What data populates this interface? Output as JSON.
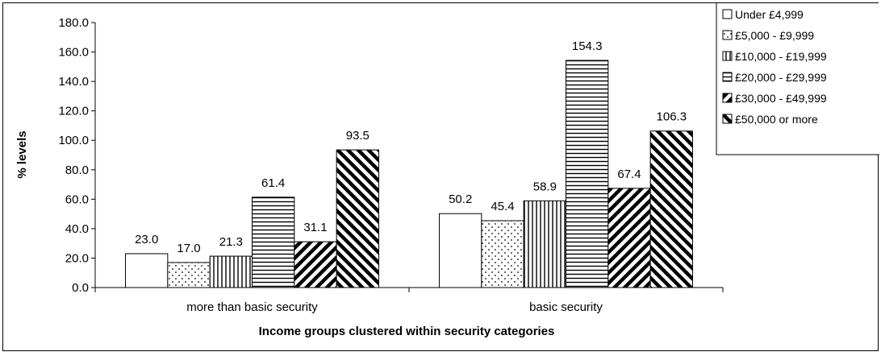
{
  "chart_data": {
    "type": "bar",
    "title": "",
    "xlabel": "Income groups clustered within security categories",
    "ylabel": "% levels",
    "ylim": [
      0,
      180
    ],
    "ytick_step": 20,
    "ytick_labels": [
      "0.0",
      "20.0",
      "40.0",
      "60.0",
      "80.0",
      "100.0",
      "120.0",
      "140.0",
      "160.0",
      "180.0"
    ],
    "grid": false,
    "legend_position": "top-right",
    "categories": [
      "more than basic security",
      "basic security"
    ],
    "series": [
      {
        "name": "Under £4,999",
        "values": [
          23.0,
          50.2
        ],
        "labels": [
          "23.0",
          "50.2"
        ],
        "pattern": "solid"
      },
      {
        "name": "£5,000 - £9,999",
        "values": [
          17.0,
          45.4
        ],
        "labels": [
          "17.0",
          "45.4"
        ],
        "pattern": "dots"
      },
      {
        "name": "£10,000 - £19,999",
        "values": [
          21.3,
          58.9
        ],
        "labels": [
          "21.3",
          "58.9"
        ],
        "pattern": "vertical"
      },
      {
        "name": "£20,000 - £29,999",
        "values": [
          61.4,
          154.3
        ],
        "labels": [
          "61.4",
          "154.3"
        ],
        "pattern": "horizontal"
      },
      {
        "name": "£30,000 - £49,999",
        "values": [
          31.1,
          67.4
        ],
        "labels": [
          "31.1",
          "67.4"
        ],
        "pattern": "diag-down"
      },
      {
        "name": "£50,000 or more",
        "values": [
          93.5,
          106.3
        ],
        "labels": [
          "93.5",
          "106.3"
        ],
        "pattern": "diag-up"
      }
    ],
    "colors": {
      "bar_stroke": "#000000",
      "bar_fill": "#ffffff",
      "pattern_ink": "#000000"
    }
  }
}
